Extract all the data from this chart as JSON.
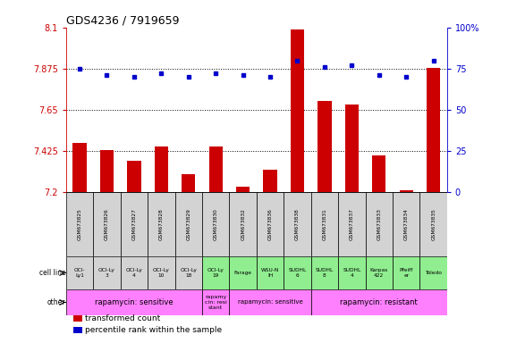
{
  "title": "GDS4236 / 7919659",
  "samples": [
    "GSM673825",
    "GSM673826",
    "GSM673827",
    "GSM673828",
    "GSM673829",
    "GSM673830",
    "GSM673832",
    "GSM673836",
    "GSM673838",
    "GSM673831",
    "GSM673837",
    "GSM673833",
    "GSM673834",
    "GSM673835"
  ],
  "transformed_count": [
    7.47,
    7.43,
    7.37,
    7.45,
    7.3,
    7.45,
    7.23,
    7.32,
    8.09,
    7.7,
    7.68,
    7.4,
    7.21,
    7.88
  ],
  "percentile_rank": [
    75,
    71,
    70,
    72,
    70,
    72,
    71,
    70,
    80,
    76,
    77,
    71,
    70,
    80
  ],
  "ylim_left": [
    7.2,
    8.1
  ],
  "ylim_right": [
    0,
    100
  ],
  "yticks_left": [
    7.2,
    7.425,
    7.65,
    7.875,
    8.1
  ],
  "yticks_right": [
    0,
    25,
    50,
    75,
    100
  ],
  "hlines": [
    7.875,
    7.65,
    7.425
  ],
  "cell_lines": [
    "OCI-\nLy1",
    "OCI-Ly\n3",
    "OCI-Ly\n4",
    "OCI-Ly\n10",
    "OCI-Ly\n18",
    "OCI-Ly\n19",
    "Farage",
    "WSU-N\nIH",
    "SUDHL\n6",
    "SUDHL\n8",
    "SUDHL\n4",
    "Karpas\n422",
    "Pfeiff\ner",
    "Toledo"
  ],
  "cell_line_colors": [
    "#d3d3d3",
    "#d3d3d3",
    "#d3d3d3",
    "#d3d3d3",
    "#d3d3d3",
    "#90ee90",
    "#90ee90",
    "#90ee90",
    "#90ee90",
    "#90ee90",
    "#90ee90",
    "#90ee90",
    "#90ee90",
    "#90ee90"
  ],
  "other_segments": [
    {
      "text": "rapamycin: sensitive",
      "start": 0,
      "end": 5,
      "fontsize": 6
    },
    {
      "text": "rapamy\ncin: resi\nstant",
      "start": 5,
      "end": 6,
      "fontsize": 4.5
    },
    {
      "text": "rapamycin: sensitive",
      "start": 6,
      "end": 9,
      "fontsize": 5
    },
    {
      "text": "rapamycin: resistant",
      "start": 9,
      "end": 14,
      "fontsize": 6
    }
  ],
  "other_color": "#ff80ff",
  "bar_color": "#cc0000",
  "dot_color": "#0000cc",
  "left_axis_color": "#cc0000",
  "right_axis_color": "#0000cc",
  "bar_baseline": 7.2,
  "legend_items": [
    {
      "color": "#cc0000",
      "label": "transformed count"
    },
    {
      "color": "#0000cc",
      "label": "percentile rank within the sample"
    }
  ]
}
